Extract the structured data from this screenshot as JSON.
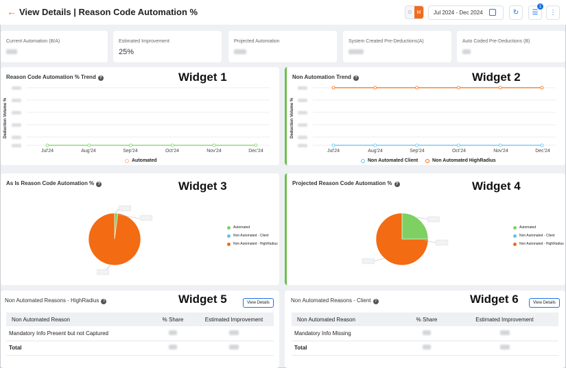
{
  "header": {
    "back_icon": "arrow-left-icon",
    "title": "View Details | Reason Code Automation %",
    "toggle_d": "D",
    "toggle_m": "M",
    "date_range": "Jul 2024 - Dec 2024",
    "filter_badge": "1",
    "icons": [
      "calendar-icon",
      "refresh-icon",
      "filter-icon",
      "more-vertical-icon"
    ]
  },
  "kpis": [
    {
      "label": "Current Automation (B/A)",
      "value": ""
    },
    {
      "label": "Estimated Improvement",
      "value": "25%"
    },
    {
      "label": "Projected Automation",
      "value": ""
    },
    {
      "label": "System Created Pre-Deductions(A)",
      "value": ""
    },
    {
      "label": "Auto Coded Pre-Deductions (B)",
      "value": ""
    }
  ],
  "colors": {
    "accent": "#f26b1f",
    "automated": "#7ed063",
    "client": "#5fc1ee",
    "highradius": "#f36b12",
    "link": "#1a73e8"
  },
  "widget1": {
    "label": "Widget 1",
    "title": "Reason Code Automation % Trend",
    "y_axis": "Deduction Volume %",
    "legend": "Automated",
    "chart_data": {
      "type": "line",
      "categories": [
        "Jul'24",
        "Aug'24",
        "Sep'24",
        "Oct'24",
        "Nov'24",
        "Dec'24"
      ],
      "series": [
        {
          "name": "Automated",
          "values": [
            0,
            0,
            0,
            0,
            0,
            0
          ]
        }
      ],
      "ylabel": "Deduction Volume %"
    }
  },
  "widget2": {
    "label": "Widget 2",
    "title": "Non Automation Trend",
    "y_axis": "Deduction Volume %",
    "legend_client": "Non Automated Client",
    "legend_hr": "Non Automated HighRadius",
    "chart_data": {
      "type": "line",
      "categories": [
        "Jul'24",
        "Aug'24",
        "Sep'24",
        "Oct'24",
        "Nov'24",
        "Dec'24"
      ],
      "series": [
        {
          "name": "Non Automated Client",
          "values": [
            0,
            0,
            0,
            0,
            0,
            0
          ]
        },
        {
          "name": "Non Automated HighRadius",
          "values": [
            100,
            100,
            100,
            100,
            100,
            100
          ]
        }
      ],
      "ylabel": "Deduction Volume %"
    }
  },
  "widget3": {
    "label": "Widget 3",
    "title": "As Is Reason Code Automation %",
    "legend": [
      "Automated",
      "Non Automated - Client",
      "Non Automated - HighRadius"
    ],
    "chart_data": {
      "type": "pie",
      "labels": [
        "Automated",
        "Non Automated - Client",
        "Non Automated - HighRadius"
      ],
      "values": [
        2,
        0,
        98
      ]
    }
  },
  "widget4": {
    "label": "Widget 4",
    "title": "Projected Reason Code Automation %",
    "legend": [
      "Automated",
      "Non Automated - Client",
      "Non Automated - HighRadius"
    ],
    "chart_data": {
      "type": "pie",
      "labels": [
        "Automated",
        "Non Automated - Client",
        "Non Automated - HighRadius"
      ],
      "values": [
        25,
        0,
        75
      ]
    }
  },
  "widget5": {
    "label": "Widget 5",
    "title": "Non Automated Reasons - HighRadius",
    "button": "View Details",
    "columns": [
      "Non Automated Reason",
      "% Share",
      "Estimated Improvement"
    ],
    "rows": [
      {
        "reason": "Mandatory Info Present but not Captured"
      }
    ],
    "total": "Total"
  },
  "widget6": {
    "label": "Widget 6",
    "title": "Non Automated Reasons - Client",
    "button": "View Details",
    "columns": [
      "Non Automated Reason",
      "% Share",
      "Estimated Improvement"
    ],
    "rows": [
      {
        "reason": "Mandatory Info Missing"
      }
    ],
    "total": "Total"
  }
}
